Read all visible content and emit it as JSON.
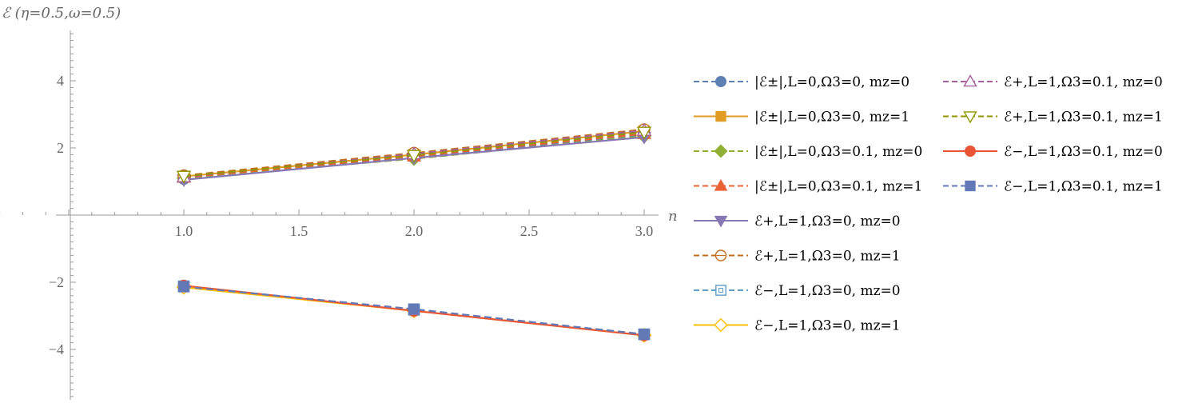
{
  "chart_data": {
    "type": "line",
    "ylabel": "ℰ (η=0.5,ω=0.5)",
    "xlabel": "n",
    "xlim": [
      0.0,
      3.05
    ],
    "ylim": [
      -5.5,
      5.5
    ],
    "x_ticks": [
      "1.0",
      "1.5",
      "2.0",
      "2.5",
      "3.0"
    ],
    "y_ticks": [
      "−4",
      "−2",
      "2",
      "4"
    ],
    "grid": false,
    "legend_position": "right",
    "x": [
      1,
      2,
      3
    ],
    "series": [
      {
        "name": "|ℰ±|,L=0,Ω3=0, mz=0",
        "color": "#5E81B5",
        "dash": "dashed",
        "marker": "filled-circle",
        "values": [
          1.08,
          1.72,
          2.4
        ]
      },
      {
        "name": "|ℰ±|,L=0,Ω3=0, mz=1",
        "color": "#E19C24",
        "dash": "solid",
        "marker": "filled-square",
        "values": [
          1.15,
          1.8,
          2.5
        ]
      },
      {
        "name": "|ℰ±|,L=0,Ω3=0.1, mz=0",
        "color": "#8FB032",
        "dash": "dashed",
        "marker": "filled-diamond",
        "values": [
          1.1,
          1.68,
          2.35
        ]
      },
      {
        "name": "|ℰ±|,L=0,Ω3=0.1, mz=1",
        "color": "#EB6235",
        "dash": "dashed",
        "marker": "filled-triangle-up",
        "values": [
          1.12,
          1.75,
          2.42
        ]
      },
      {
        "name": "ℰ+,L=1,Ω3=0, mz=0",
        "color": "#8778B3",
        "dash": "solid",
        "marker": "filled-triangle-down",
        "values": [
          1.05,
          1.7,
          2.32
        ]
      },
      {
        "name": "ℰ+,L=1,Ω3=0, mz=1",
        "color": "#C56E1A",
        "dash": "dashed",
        "marker": "open-circle",
        "values": [
          1.18,
          1.85,
          2.55
        ]
      },
      {
        "name": "ℰ−,L=1,Ω3=0, mz=0",
        "color": "#5D9EC7",
        "dash": "dashed",
        "marker": "open-square",
        "values": [
          -2.12,
          -2.82,
          -3.55
        ]
      },
      {
        "name": "ℰ−,L=1,Ω3=0, mz=1",
        "color": "#FFBF00",
        "dash": "solid",
        "marker": "open-diamond",
        "values": [
          -2.15,
          -2.85,
          -3.58
        ]
      },
      {
        "name": "ℰ+,L=1,Ω3=0.1, mz=0",
        "color": "#A5609D",
        "dash": "dashed",
        "marker": "open-triangle-up",
        "values": [
          1.14,
          1.82,
          2.52
        ]
      },
      {
        "name": "ℰ+,L=1,Ω3=0.1, mz=1",
        "color": "#929600",
        "dash": "dashed",
        "marker": "open-triangle-down",
        "values": [
          1.16,
          1.78,
          2.47
        ]
      },
      {
        "name": "ℰ−,L=1,Ω3=0.1, mz=0",
        "color": "#E95536",
        "dash": "solid",
        "marker": "filled-circle",
        "values": [
          -2.1,
          -2.85,
          -3.58
        ]
      },
      {
        "name": "ℰ−,L=1,Ω3=0.1, mz=1",
        "color": "#6279B8",
        "dash": "dashed",
        "marker": "filled-square",
        "values": [
          -2.13,
          -2.8,
          -3.55
        ]
      }
    ]
  }
}
